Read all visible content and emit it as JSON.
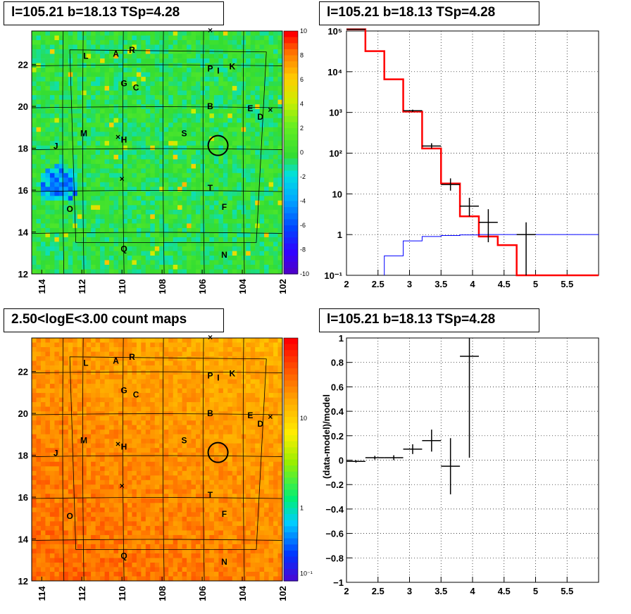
{
  "titles": {
    "top_left": "l=105.21 b=18.13 TSp=4.28",
    "top_right": "l=105.21 b=18.13 TSp=4.28",
    "bottom_left": "2.50<logE<3.00 count maps",
    "bottom_right": "l=105.21 b=18.13 TSp=4.28"
  },
  "colors": {
    "model_line": "#ff0000",
    "blue_line": "#0000ff",
    "data_marker": "#000000",
    "grid": "#000000"
  },
  "sky_maps": {
    "x_ticks": [
      "114",
      "112",
      "110",
      "108",
      "106",
      "104",
      "102"
    ],
    "y_ticks": [
      "12",
      "14",
      "16",
      "18",
      "20",
      "22"
    ],
    "sources": [
      {
        "name": "L",
        "l": 111.8,
        "b": 22.4
      },
      {
        "name": "A",
        "l": 110.3,
        "b": 22.5
      },
      {
        "name": "R",
        "l": 109.5,
        "b": 22.7
      },
      {
        "name": "P",
        "l": 105.6,
        "b": 21.8
      },
      {
        "name": "I",
        "l": 105.2,
        "b": 21.7
      },
      {
        "name": "K",
        "l": 104.5,
        "b": 21.9
      },
      {
        "name": "G",
        "l": 109.9,
        "b": 21.1
      },
      {
        "name": "C",
        "l": 109.3,
        "b": 20.9
      },
      {
        "name": "B",
        "l": 105.6,
        "b": 20.0
      },
      {
        "name": "E",
        "l": 103.6,
        "b": 19.9
      },
      {
        "name": "D",
        "l": 103.1,
        "b": 19.5
      },
      {
        "name": "M",
        "l": 111.9,
        "b": 18.7
      },
      {
        "name": "H",
        "l": 109.9,
        "b": 18.4
      },
      {
        "name": "S",
        "l": 106.9,
        "b": 18.7
      },
      {
        "name": "J",
        "l": 113.3,
        "b": 18.1
      },
      {
        "name": "T",
        "l": 105.6,
        "b": 16.1
      },
      {
        "name": "O",
        "l": 112.6,
        "b": 15.1
      },
      {
        "name": "F",
        "l": 104.9,
        "b": 15.2
      },
      {
        "name": "Q",
        "l": 109.9,
        "b": 13.2
      },
      {
        "name": "N",
        "l": 104.9,
        "b": 12.9
      }
    ],
    "crosses": [
      {
        "l": 105.6,
        "b": 23.6
      },
      {
        "l": 110.2,
        "b": 18.5
      },
      {
        "l": 110.0,
        "b": 16.5
      },
      {
        "l": 102.6,
        "b": 19.8
      }
    ],
    "circle": {
      "l": 105.21,
      "b": 18.13
    },
    "top_colorbar_ticks": [
      "10",
      "8",
      "6",
      "4",
      "2",
      "0",
      "-2",
      "-4",
      "-6",
      "-8",
      "-10"
    ],
    "bottom_colorbar_ticks": [
      "10",
      "1",
      "10⁻¹"
    ]
  },
  "chart_data": [
    {
      "type": "line",
      "title": "l=105.21 b=18.13 TSp=4.28",
      "xlim": [
        2,
        6
      ],
      "ylim": [
        0.1,
        100000
      ],
      "yscale": "log",
      "x_ticks": [
        "2",
        "2.5",
        "3",
        "3.5",
        "4",
        "4.5",
        "5",
        "5.5"
      ],
      "y_ticks": [
        "10⁻¹",
        "1",
        "10",
        "10²",
        "10³",
        "10⁴",
        "10⁵"
      ],
      "grid": true,
      "series": [
        {
          "style": "step",
          "color": "#ff0000",
          "edges": [
            2.0,
            2.3,
            2.6,
            2.9,
            3.2,
            3.5,
            3.8,
            4.1,
            4.4,
            4.7,
            5.0,
            6.0
          ],
          "values": [
            110000,
            32000,
            6500,
            1050,
            130,
            18,
            2.8,
            0.9,
            0.55,
            0.1,
            0.1
          ]
        },
        {
          "style": "step",
          "color": "#0000ff",
          "edges": [
            2.6,
            2.9,
            3.2,
            3.5,
            3.8,
            4.1,
            4.4,
            6.0
          ],
          "values": [
            0.3,
            0.7,
            0.9,
            0.95,
            0.98,
            1.0,
            1.0
          ]
        },
        {
          "style": "errorbars",
          "color": "#000000",
          "points": [
            {
              "x": 2.15,
              "y": 110000,
              "xerr": 0.15,
              "ylo": 109000,
              "yhi": 111000
            },
            {
              "x": 3.05,
              "y": 1100,
              "xerr": 0.15,
              "ylo": 1030,
              "yhi": 1170
            },
            {
              "x": 3.35,
              "y": 150,
              "xerr": 0.15,
              "ylo": 130,
              "yhi": 175
            },
            {
              "x": 3.65,
              "y": 17,
              "xerr": 0.15,
              "ylo": 12,
              "yhi": 24
            },
            {
              "x": 3.95,
              "y": 5,
              "xerr": 0.15,
              "ylo": 2.8,
              "yhi": 8
            },
            {
              "x": 4.25,
              "y": 2,
              "xerr": 0.15,
              "ylo": 0.65,
              "yhi": 4.2
            },
            {
              "x": 4.85,
              "y": 1,
              "xerr": 0.15,
              "ylo": 0.1,
              "yhi": 2.0
            }
          ]
        }
      ]
    },
    {
      "type": "scatter",
      "title": "l=105.21 b=18.13 TSp=4.28",
      "ylabel": "(data-model)/model",
      "xlim": [
        2,
        6
      ],
      "ylim": [
        -1,
        1
      ],
      "x_ticks": [
        "2",
        "2.5",
        "3",
        "3.5",
        "4",
        "4.5",
        "5",
        "5.5"
      ],
      "y_ticks": [
        "-1",
        "-0.8",
        "-0.6",
        "-0.4",
        "-0.2",
        "0",
        "0.2",
        "0.4",
        "0.6",
        "0.8",
        "1"
      ],
      "grid": true,
      "series": [
        {
          "style": "errorbars",
          "color": "#000000",
          "points": [
            {
              "x": 2.15,
              "y": -0.01,
              "xerr": 0.15,
              "yerr": 0.01
            },
            {
              "x": 2.45,
              "y": 0.02,
              "xerr": 0.15,
              "yerr": 0.015
            },
            {
              "x": 2.75,
              "y": 0.02,
              "xerr": 0.15,
              "yerr": 0.02
            },
            {
              "x": 3.05,
              "y": 0.09,
              "xerr": 0.15,
              "yerr": 0.04
            },
            {
              "x": 3.35,
              "y": 0.16,
              "xerr": 0.15,
              "yerr": 0.09
            },
            {
              "x": 3.65,
              "y": -0.05,
              "xerr": 0.15,
              "yerr": 0.23
            },
            {
              "x": 3.95,
              "y": 0.85,
              "xerr": 0.15,
              "yerr": 0.83
            }
          ]
        }
      ]
    }
  ]
}
